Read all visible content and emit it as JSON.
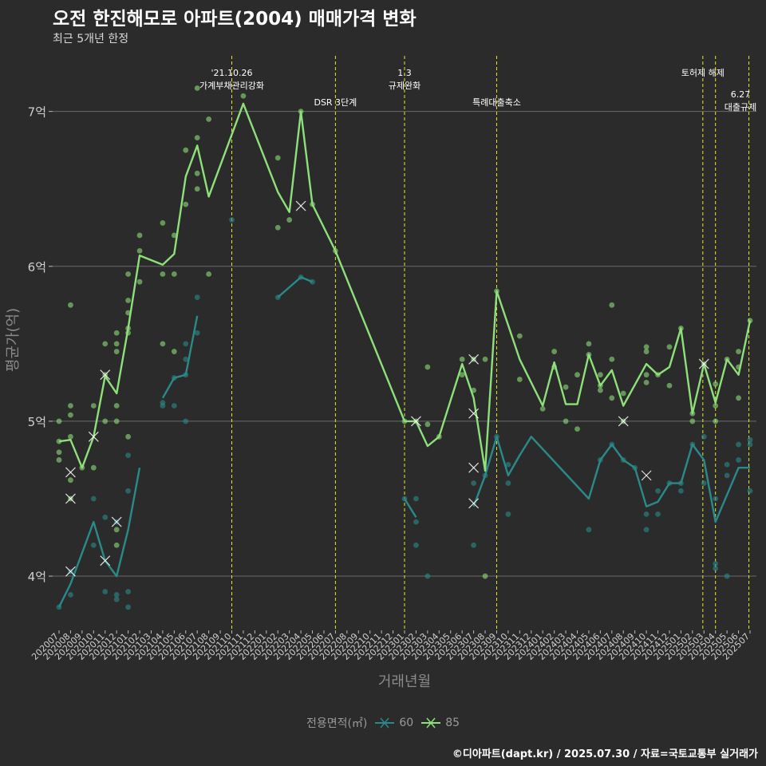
{
  "header": {
    "title": "오전 한진해모로 아파트(2004) 매매가격 변화",
    "subtitle": "최근 5개년 한정"
  },
  "caption": "©디아파트(dapt.kr) / 2025.07.30 / 자료=국토교통부 실거래가",
  "legend": {
    "title": "전용면적(㎡)",
    "items": [
      {
        "label": "60",
        "color": "#2a8a8a"
      },
      {
        "label": "85",
        "color": "#8ee07a"
      }
    ]
  },
  "colors": {
    "background": "#2b2b2b",
    "grid": "#6a6a6a",
    "event_line": "#e6e62a",
    "series_60": "#2a8a8a",
    "series_85": "#8ee07a"
  },
  "chart_data": {
    "type": "line",
    "title": "오전 한진해모로 아파트(2004) 매매가격 변화",
    "xlabel": "거래년월",
    "ylabel": "평균가(억)",
    "ylim": [
      3.65,
      7.4
    ],
    "y_ticks": [
      {
        "value": 4,
        "label": "4억"
      },
      {
        "value": 5,
        "label": "5억"
      },
      {
        "value": 6,
        "label": "6억"
      },
      {
        "value": 7,
        "label": "7억"
      }
    ],
    "x_labels": [
      "202007",
      "202008",
      "202009",
      "202010",
      "202011",
      "202012",
      "202101",
      "202102",
      "202103",
      "202104",
      "202105",
      "202106",
      "202107",
      "202108",
      "202109",
      "202110",
      "202111",
      "202112",
      "202201",
      "202202",
      "202203",
      "202204",
      "202205",
      "202206",
      "202207",
      "202208",
      "202209",
      "202210",
      "202211",
      "202212",
      "202301",
      "202302",
      "202303",
      "202304",
      "202305",
      "202306",
      "202307",
      "202308",
      "202309",
      "202310",
      "202311",
      "202312",
      "202401",
      "202402",
      "202403",
      "202404",
      "202405",
      "202406",
      "202407",
      "202408",
      "202409",
      "202410",
      "202411",
      "202412",
      "202501",
      "202502",
      "202503",
      "202504",
      "202505",
      "202506",
      "202507"
    ],
    "events": [
      {
        "index": 15.0,
        "lines": [
          "'21.10.26",
          "가계부채관리강화"
        ],
        "pos": "high"
      },
      {
        "index": 24.0,
        "lines": [
          "DSR 3단계"
        ],
        "pos": "low"
      },
      {
        "index": 30.0,
        "lines": [
          "1.3",
          "규제완화"
        ],
        "pos": "high"
      },
      {
        "index": 38.0,
        "lines": [
          "특례대출축소"
        ],
        "pos": "low"
      },
      {
        "index": 55.9,
        "lines": [
          "토허제 해제"
        ],
        "pos": "high"
      },
      {
        "index": 57.0,
        "lines": [],
        "pos": "none"
      },
      {
        "index": 59.9,
        "lines": [
          "6.27",
          "대출규제"
        ],
        "pos": "right"
      }
    ],
    "series": [
      {
        "name": "60",
        "color": "#2a8a8a",
        "segments": [
          [
            [
              0,
              3.8
            ],
            [
              1,
              3.95
            ],
            [
              2,
              4.15
            ],
            [
              3,
              4.35
            ],
            [
              4,
              4.1
            ],
            [
              5,
              4.0
            ],
            [
              6,
              4.3
            ],
            [
              7,
              4.7
            ]
          ],
          [
            [
              9,
              5.15
            ],
            [
              10,
              5.28
            ],
            [
              11,
              5.3
            ],
            [
              12,
              5.68
            ]
          ],
          [
            [
              19,
              5.8
            ],
            [
              21,
              5.93
            ],
            [
              22,
              5.9
            ]
          ],
          [
            [
              30,
              4.5
            ],
            [
              31,
              4.38
            ]
          ],
          [
            [
              36,
              4.45
            ],
            [
              37,
              4.65
            ],
            [
              38,
              4.9
            ],
            [
              39,
              4.65
            ],
            [
              40,
              4.78
            ],
            [
              41,
              4.9
            ],
            [
              46,
              4.5
            ],
            [
              47,
              4.75
            ],
            [
              48,
              4.85
            ],
            [
              49,
              4.75
            ],
            [
              50,
              4.7
            ],
            [
              51,
              4.45
            ],
            [
              52,
              4.48
            ],
            [
              53,
              4.6
            ],
            [
              54,
              4.6
            ],
            [
              55,
              4.85
            ],
            [
              56,
              4.75
            ],
            [
              57,
              4.35
            ],
            [
              59,
              4.7
            ],
            [
              60,
              4.7
            ]
          ]
        ],
        "points": [
          [
            0,
            3.8
          ],
          [
            1,
            4.03
          ],
          [
            1,
            3.88
          ],
          [
            3,
            4.5
          ],
          [
            3,
            4.2
          ],
          [
            4,
            4.38
          ],
          [
            4,
            3.9
          ],
          [
            5,
            3.88
          ],
          [
            5,
            3.85
          ],
          [
            5,
            4.35
          ],
          [
            6,
            4.78
          ],
          [
            6,
            3.9
          ],
          [
            6,
            3.8
          ],
          [
            6,
            4.55
          ],
          [
            9,
            5.1
          ],
          [
            9,
            5.12
          ],
          [
            10,
            5.1
          ],
          [
            10,
            5.28
          ],
          [
            11,
            5.0
          ],
          [
            11,
            5.3
          ],
          [
            11,
            5.4
          ],
          [
            11,
            5.5
          ],
          [
            12,
            5.57
          ],
          [
            12,
            5.8
          ],
          [
            15,
            6.3
          ],
          [
            19,
            5.8
          ],
          [
            21,
            5.93
          ],
          [
            22,
            5.9
          ],
          [
            30,
            4.5
          ],
          [
            31,
            4.5
          ],
          [
            31,
            4.2
          ],
          [
            31,
            4.35
          ],
          [
            32,
            4.0
          ],
          [
            36,
            4.2
          ],
          [
            36,
            4.6
          ],
          [
            37,
            4.65
          ],
          [
            38,
            4.9
          ],
          [
            39,
            4.6
          ],
          [
            39,
            4.4
          ],
          [
            39,
            4.72
          ],
          [
            46,
            4.3
          ],
          [
            47,
            4.75
          ],
          [
            48,
            4.85
          ],
          [
            49,
            4.75
          ],
          [
            50,
            4.7
          ],
          [
            51,
            4.3
          ],
          [
            51,
            4.4
          ],
          [
            52,
            4.4
          ],
          [
            52,
            4.55
          ],
          [
            53,
            4.6
          ],
          [
            54,
            4.6
          ],
          [
            54,
            4.55
          ],
          [
            55,
            4.85
          ],
          [
            56,
            4.6
          ],
          [
            56,
            4.9
          ],
          [
            57,
            4.05
          ],
          [
            57,
            4.08
          ],
          [
            57,
            4.5
          ],
          [
            58,
            4.0
          ],
          [
            58,
            4.65
          ],
          [
            58,
            4.72
          ],
          [
            59,
            4.85
          ],
          [
            59,
            4.75
          ],
          [
            60,
            4.88
          ],
          [
            60,
            4.55
          ],
          [
            60,
            4.85
          ]
        ],
        "crosses": [
          [
            1,
            4.03
          ],
          [
            4,
            4.1
          ],
          [
            5,
            4.35
          ],
          [
            36,
            4.47
          ],
          [
            51,
            4.65
          ]
        ]
      },
      {
        "name": "85",
        "color": "#8ee07a",
        "segments": [
          [
            [
              0,
              4.87
            ],
            [
              1,
              4.88
            ],
            [
              2,
              4.7
            ],
            [
              3,
              4.9
            ],
            [
              4,
              5.29
            ],
            [
              5,
              5.18
            ],
            [
              6,
              5.6
            ],
            [
              7,
              6.07
            ],
            [
              9,
              6.01
            ],
            [
              10,
              6.08
            ],
            [
              11,
              6.58
            ],
            [
              12,
              6.78
            ],
            [
              13,
              6.45
            ],
            [
              16,
              7.05
            ],
            [
              19,
              6.48
            ],
            [
              20,
              6.35
            ],
            [
              21,
              7.0
            ],
            [
              22,
              6.4
            ],
            [
              24,
              6.1
            ],
            [
              30,
              5.0
            ],
            [
              31,
              5.0
            ],
            [
              32,
              4.84
            ],
            [
              33,
              4.9
            ],
            [
              35,
              5.37
            ],
            [
              36,
              5.15
            ],
            [
              37,
              4.68
            ],
            [
              38,
              5.84
            ],
            [
              40,
              5.4
            ],
            [
              42,
              5.1
            ],
            [
              43,
              5.38
            ],
            [
              44,
              5.11
            ],
            [
              45,
              5.11
            ],
            [
              46,
              5.43
            ],
            [
              47,
              5.23
            ],
            [
              48,
              5.33
            ],
            [
              49,
              5.1
            ],
            [
              51,
              5.37
            ],
            [
              52,
              5.3
            ],
            [
              53,
              5.35
            ],
            [
              54,
              5.6
            ],
            [
              55,
              5.05
            ],
            [
              56,
              5.37
            ],
            [
              57,
              5.12
            ],
            [
              58,
              5.4
            ],
            [
              59,
              5.3
            ],
            [
              60,
              5.65
            ]
          ]
        ],
        "points": [
          [
            0,
            5.0
          ],
          [
            0,
            4.87
          ],
          [
            0,
            4.8
          ],
          [
            0,
            4.75
          ],
          [
            1,
            5.75
          ],
          [
            1,
            5.1
          ],
          [
            1,
            5.04
          ],
          [
            1,
            4.9
          ],
          [
            1,
            4.62
          ],
          [
            1,
            4.5
          ],
          [
            2,
            4.7
          ],
          [
            3,
            5.1
          ],
          [
            3,
            4.7
          ],
          [
            4,
            5.5
          ],
          [
            4,
            5.3
          ],
          [
            4,
            5.0
          ],
          [
            5,
            5.57
          ],
          [
            5,
            5.5
          ],
          [
            5,
            5.45
          ],
          [
            5,
            5.1
          ],
          [
            5,
            5.0
          ],
          [
            5,
            4.3
          ],
          [
            5,
            4.2
          ],
          [
            6,
            5.95
          ],
          [
            6,
            5.78
          ],
          [
            6,
            5.7
          ],
          [
            6,
            5.6
          ],
          [
            6,
            5.57
          ],
          [
            6,
            4.9
          ],
          [
            7,
            6.2
          ],
          [
            7,
            6.1
          ],
          [
            7,
            5.9
          ],
          [
            9,
            6.28
          ],
          [
            9,
            5.95
          ],
          [
            9,
            5.5
          ],
          [
            10,
            6.2
          ],
          [
            10,
            5.95
          ],
          [
            10,
            5.45
          ],
          [
            11,
            6.75
          ],
          [
            11,
            6.4
          ],
          [
            12,
            7.15
          ],
          [
            12,
            6.83
          ],
          [
            12,
            6.6
          ],
          [
            12,
            6.5
          ],
          [
            13,
            6.95
          ],
          [
            13,
            5.95
          ],
          [
            16,
            7.1
          ],
          [
            19,
            6.7
          ],
          [
            19,
            6.25
          ],
          [
            20,
            6.3
          ],
          [
            21,
            7.0
          ],
          [
            22,
            6.4
          ],
          [
            24,
            6.1
          ],
          [
            30,
            5.0
          ],
          [
            31,
            5.0
          ],
          [
            32,
            5.35
          ],
          [
            32,
            4.98
          ],
          [
            33,
            4.9
          ],
          [
            35,
            5.4
          ],
          [
            35,
            5.3
          ],
          [
            36,
            5.4
          ],
          [
            36,
            5.2
          ],
          [
            37,
            5.4
          ],
          [
            37,
            4.0
          ],
          [
            38,
            5.84
          ],
          [
            40,
            5.55
          ],
          [
            40,
            5.27
          ],
          [
            42,
            5.08
          ],
          [
            43,
            5.45
          ],
          [
            43,
            5.35
          ],
          [
            44,
            5.0
          ],
          [
            44,
            5.22
          ],
          [
            45,
            4.95
          ],
          [
            45,
            5.3
          ],
          [
            46,
            5.5
          ],
          [
            46,
            5.43
          ],
          [
            47,
            5.23
          ],
          [
            47,
            5.2
          ],
          [
            47,
            5.3
          ],
          [
            48,
            5.75
          ],
          [
            48,
            5.4
          ],
          [
            48,
            5.15
          ],
          [
            49,
            5.18
          ],
          [
            49,
            5.0
          ],
          [
            51,
            5.48
          ],
          [
            51,
            5.45
          ],
          [
            51,
            5.3
          ],
          [
            51,
            5.25
          ],
          [
            52,
            5.3
          ],
          [
            53,
            5.23
          ],
          [
            53,
            5.48
          ],
          [
            54,
            5.6
          ],
          [
            55,
            5.0
          ],
          [
            55,
            5.05
          ],
          [
            56,
            5.37
          ],
          [
            57,
            5.1
          ],
          [
            57,
            5.24
          ],
          [
            57,
            5.0
          ],
          [
            58,
            5.4
          ],
          [
            59,
            5.45
          ],
          [
            59,
            5.35
          ],
          [
            59,
            5.15
          ],
          [
            60,
            5.65
          ]
        ],
        "crosses": [
          [
            1,
            4.67
          ],
          [
            1,
            4.5
          ],
          [
            3,
            4.9
          ],
          [
            4,
            5.3
          ],
          [
            21,
            6.39
          ],
          [
            31,
            5.0
          ],
          [
            36,
            5.4
          ],
          [
            36,
            5.05
          ],
          [
            36,
            4.7
          ],
          [
            49,
            5.0
          ],
          [
            56,
            5.37
          ]
        ]
      }
    ]
  }
}
